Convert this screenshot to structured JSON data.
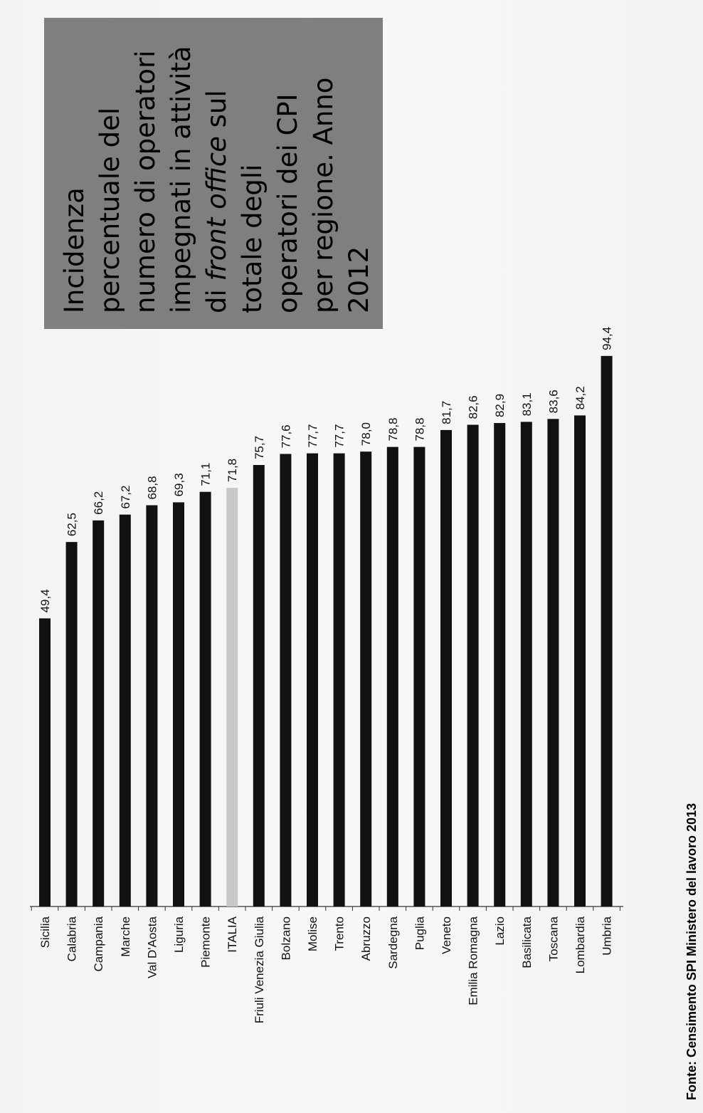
{
  "chart_data": {
    "type": "bar",
    "orientation": "rotated-90-counterclockwise",
    "title_lines": [
      "Incidenza",
      "percentuale del",
      "numero di operatori",
      "impegnati in attività",
      "di front office sul",
      "totale degli",
      "operatori dei CPI",
      "per regione. Anno",
      "2012"
    ],
    "categories": [
      "Sicilia",
      "Calabria",
      "Campania",
      "Marche",
      "Val D'Aosta",
      "Liguria",
      "Piemonte",
      "ITALIA",
      "Friuli Venezia Giulia",
      "Bolzano",
      "Molise",
      "Trento",
      "Abruzzo",
      "Sardegna",
      "Puglia",
      "Veneto",
      "Emilia Romagna",
      "Lazio",
      "Basilicata",
      "Toscana",
      "Lombardia",
      "Umbria"
    ],
    "values": [
      49.4,
      62.5,
      66.2,
      67.2,
      68.8,
      69.3,
      71.1,
      71.8,
      75.7,
      77.6,
      77.7,
      77.7,
      78.0,
      78.8,
      78.8,
      81.7,
      82.6,
      82.9,
      83.1,
      83.6,
      84.2,
      94.4
    ],
    "value_labels": [
      "49,4",
      "62,5",
      "66,2",
      "67,2",
      "68,8",
      "69,3",
      "71,1",
      "71,8",
      "75,7",
      "77,6",
      "77,7",
      "77,7",
      "78,0",
      "78,8",
      "78,8",
      "81,7",
      "82,6",
      "82,9",
      "83,1",
      "83,6",
      "84,2",
      "94,4"
    ],
    "highlight_category": "ITALIA",
    "colors": {
      "bar": "#111111",
      "highlight": "#c8c8c8",
      "title_box": "#7f7f7f"
    },
    "grid": false,
    "legend": "none",
    "source": "Fonte: Censimento SPI Ministero del lavoro 2013"
  }
}
